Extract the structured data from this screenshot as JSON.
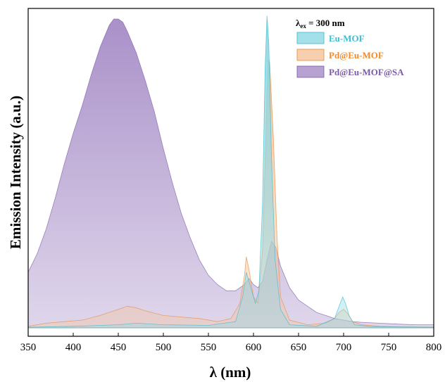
{
  "chart_data": {
    "type": "area",
    "title": "",
    "legend_title": {
      "main": "λ",
      "sub": "ex",
      "rest": " = 300 nm"
    },
    "xlabel": "λ (nm)",
    "ylabel": "Emission Intensity (a.u.)",
    "xlim": [
      350,
      800
    ],
    "ylim": [
      0,
      1.02
    ],
    "xticks": [
      350,
      400,
      450,
      500,
      550,
      600,
      650,
      700,
      750,
      800
    ],
    "legend_position": "top-right",
    "series": [
      {
        "name": "Pd@Eu-MOF@SA",
        "color": "#7b5ba6",
        "fill": "#a58bc6",
        "label_color": "#7b5ba6",
        "x": [
          350,
          360,
          370,
          380,
          390,
          400,
          410,
          420,
          430,
          440,
          445,
          450,
          455,
          460,
          470,
          480,
          490,
          500,
          510,
          520,
          530,
          540,
          550,
          560,
          570,
          580,
          590,
          595,
          600,
          605,
          610,
          615,
          620,
          625,
          630,
          640,
          650,
          660,
          670,
          680,
          690,
          700,
          710,
          720,
          740,
          760,
          780,
          800
        ],
        "y": [
          0.18,
          0.24,
          0.32,
          0.42,
          0.53,
          0.63,
          0.72,
          0.82,
          0.91,
          0.98,
          1.0,
          1.0,
          0.99,
          0.96,
          0.89,
          0.8,
          0.7,
          0.58,
          0.47,
          0.37,
          0.29,
          0.22,
          0.17,
          0.14,
          0.12,
          0.12,
          0.14,
          0.16,
          0.14,
          0.13,
          0.15,
          0.22,
          0.28,
          0.26,
          0.2,
          0.13,
          0.09,
          0.07,
          0.05,
          0.04,
          0.03,
          0.025,
          0.02,
          0.018,
          0.015,
          0.012,
          0.01,
          0.01
        ]
      },
      {
        "name": "Pd@Eu-MOF",
        "color": "#e58a3a",
        "fill": "#f6c39a",
        "label_color": "#f08a2a",
        "x": [
          350,
          370,
          390,
          410,
          430,
          450,
          460,
          470,
          480,
          500,
          520,
          540,
          560,
          575,
          585,
          590,
          592,
          595,
          600,
          605,
          610,
          614,
          616,
          618,
          622,
          626,
          630,
          640,
          660,
          680,
          690,
          695,
          700,
          705,
          710,
          720,
          740,
          760,
          800
        ],
        "y": [
          0.005,
          0.015,
          0.02,
          0.025,
          0.04,
          0.06,
          0.07,
          0.065,
          0.055,
          0.04,
          0.035,
          0.03,
          0.02,
          0.03,
          0.08,
          0.17,
          0.23,
          0.19,
          0.1,
          0.08,
          0.25,
          0.65,
          0.87,
          0.86,
          0.62,
          0.3,
          0.1,
          0.025,
          0.01,
          0.015,
          0.03,
          0.05,
          0.06,
          0.045,
          0.02,
          0.01,
          0.005,
          0.003,
          0.002
        ]
      },
      {
        "name": "Eu-MOF",
        "color": "#39b8cc",
        "fill": "#8dd8e4",
        "label_color": "#3bbdd3",
        "x": [
          350,
          400,
          450,
          470,
          500,
          550,
          580,
          588,
          592,
          596,
          602,
          606,
          610,
          613,
          615,
          617,
          620,
          624,
          630,
          640,
          670,
          690,
          695,
          699,
          702,
          706,
          712,
          730,
          800
        ],
        "y": [
          0.002,
          0.005,
          0.01,
          0.015,
          0.01,
          0.008,
          0.02,
          0.1,
          0.18,
          0.14,
          0.08,
          0.12,
          0.4,
          0.85,
          1.01,
          0.92,
          0.55,
          0.22,
          0.06,
          0.01,
          0.005,
          0.03,
          0.07,
          0.1,
          0.08,
          0.04,
          0.01,
          0.004,
          0.002
        ]
      }
    ]
  }
}
